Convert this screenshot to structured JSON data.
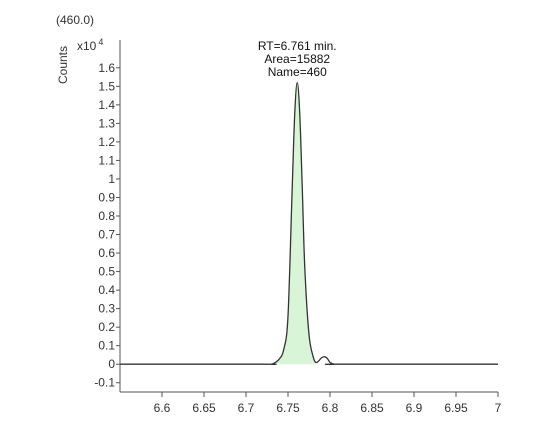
{
  "chart_data": {
    "type": "line",
    "trace_label": "(460.0)",
    "ylabel": "Counts",
    "y_multiplier": "x10",
    "y_multiplier_exponent": "4",
    "xlim": [
      6.55,
      7.0
    ],
    "ylim": [
      -0.15,
      1.75
    ],
    "x_ticks": [
      6.6,
      6.65,
      6.7,
      6.75,
      6.8,
      6.85,
      6.9,
      6.95,
      7.0
    ],
    "x_tick_labels": [
      "6.6",
      "6.65",
      "6.7",
      "6.75",
      "6.8",
      "6.85",
      "6.9",
      "6.95",
      "7"
    ],
    "y_ticks": [
      -0.1,
      0,
      0.1,
      0.2,
      0.3,
      0.4,
      0.5,
      0.6,
      0.7,
      0.8,
      0.9,
      1.0,
      1.1,
      1.2,
      1.3,
      1.4,
      1.5,
      1.6
    ],
    "y_tick_labels": [
      "-0.1",
      "0",
      "0.1",
      "0.2",
      "0.3",
      "0.4",
      "0.5",
      "0.6",
      "0.7",
      "0.8",
      "0.9",
      "1",
      "1.1",
      "1.2",
      "1.3",
      "1.4",
      "1.5",
      "1.6"
    ],
    "series": [
      {
        "line_color": "#333333",
        "fill_color": "#d8f5d8",
        "x": [
          6.55,
          6.72,
          6.73,
          6.735,
          6.74,
          6.745,
          6.75,
          6.755,
          6.758,
          6.761,
          6.764,
          6.767,
          6.77,
          6.775,
          6.78,
          6.783,
          6.786,
          6.79,
          6.794,
          6.797,
          6.8,
          6.805,
          6.81,
          7.0
        ],
        "y": [
          0.0,
          0.0,
          0.0,
          0.01,
          0.03,
          0.08,
          0.26,
          0.95,
          1.35,
          1.52,
          1.35,
          0.95,
          0.52,
          0.16,
          0.04,
          0.01,
          0.015,
          0.035,
          0.04,
          0.03,
          0.01,
          0.0,
          0.0,
          0.0
        ]
      }
    ],
    "fill_range": [
      6.735,
      6.783
    ],
    "annotations": [
      {
        "lines": [
          "RT=6.761 min.",
          "Area=15882",
          "Name=460"
        ],
        "x": 6.761
      }
    ]
  }
}
